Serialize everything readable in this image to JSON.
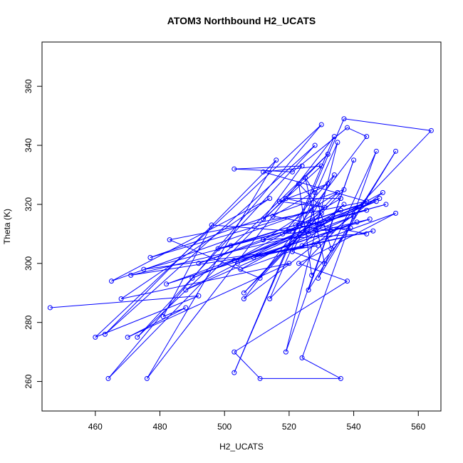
{
  "chart_data": {
    "type": "scatter",
    "title": "ATOM3 Northbound H2_UCATS",
    "xlabel": "H2_UCATS",
    "ylabel": "Theta (K)",
    "xlim": [
      443.5,
      567
    ],
    "ylim": [
      250,
      375
    ],
    "xticks": [
      460,
      480,
      500,
      520,
      540,
      560
    ],
    "yticks": [
      260,
      280,
      300,
      320,
      340,
      360
    ],
    "grid": false,
    "connect_points": true,
    "color": "#0000ff",
    "points": [
      {
        "x": 446,
        "y": 285
      },
      {
        "x": 492,
        "y": 289
      },
      {
        "x": 460,
        "y": 275
      },
      {
        "x": 530,
        "y": 347
      },
      {
        "x": 464,
        "y": 261
      },
      {
        "x": 532,
        "y": 337
      },
      {
        "x": 473,
        "y": 275
      },
      {
        "x": 528,
        "y": 340
      },
      {
        "x": 463,
        "y": 276
      },
      {
        "x": 516,
        "y": 335
      },
      {
        "x": 476,
        "y": 261
      },
      {
        "x": 534,
        "y": 343
      },
      {
        "x": 503,
        "y": 263
      },
      {
        "x": 537,
        "y": 349
      },
      {
        "x": 564,
        "y": 345
      },
      {
        "x": 514,
        "y": 288
      },
      {
        "x": 535,
        "y": 341
      },
      {
        "x": 519,
        "y": 270
      },
      {
        "x": 540,
        "y": 335
      },
      {
        "x": 526,
        "y": 291
      },
      {
        "x": 553,
        "y": 338
      },
      {
        "x": 529,
        "y": 295
      },
      {
        "x": 547,
        "y": 338
      },
      {
        "x": 524,
        "y": 268
      },
      {
        "x": 536,
        "y": 261
      },
      {
        "x": 511,
        "y": 261
      },
      {
        "x": 503,
        "y": 270
      },
      {
        "x": 538,
        "y": 294
      },
      {
        "x": 523,
        "y": 300
      },
      {
        "x": 553,
        "y": 317
      },
      {
        "x": 505,
        "y": 298
      },
      {
        "x": 549,
        "y": 324
      },
      {
        "x": 506,
        "y": 288
      },
      {
        "x": 544,
        "y": 343
      },
      {
        "x": 538,
        "y": 346
      },
      {
        "x": 521,
        "y": 331
      },
      {
        "x": 503,
        "y": 332
      },
      {
        "x": 524,
        "y": 333
      },
      {
        "x": 512,
        "y": 315
      },
      {
        "x": 530,
        "y": 333
      },
      {
        "x": 512,
        "y": 331
      },
      {
        "x": 544,
        "y": 321
      },
      {
        "x": 483,
        "y": 308
      },
      {
        "x": 511,
        "y": 295
      },
      {
        "x": 537,
        "y": 325
      },
      {
        "x": 477,
        "y": 302
      },
      {
        "x": 527,
        "y": 318
      },
      {
        "x": 465,
        "y": 294
      },
      {
        "x": 514,
        "y": 322
      },
      {
        "x": 468,
        "y": 288
      },
      {
        "x": 520,
        "y": 300
      },
      {
        "x": 470,
        "y": 275
      },
      {
        "x": 488,
        "y": 285
      },
      {
        "x": 481,
        "y": 282
      },
      {
        "x": 496,
        "y": 313
      },
      {
        "x": 520,
        "y": 311
      },
      {
        "x": 550,
        "y": 320
      },
      {
        "x": 475,
        "y": 298
      },
      {
        "x": 529,
        "y": 306
      },
      {
        "x": 471,
        "y": 296
      },
      {
        "x": 545,
        "y": 315
      },
      {
        "x": 482,
        "y": 293
      },
      {
        "x": 540,
        "y": 316
      },
      {
        "x": 488,
        "y": 291
      },
      {
        "x": 536,
        "y": 318
      },
      {
        "x": 492,
        "y": 300
      },
      {
        "x": 547,
        "y": 321
      },
      {
        "x": 490,
        "y": 295
      },
      {
        "x": 543,
        "y": 320
      },
      {
        "x": 498,
        "y": 305
      },
      {
        "x": 544,
        "y": 318
      },
      {
        "x": 502,
        "y": 306
      },
      {
        "x": 548,
        "y": 322
      },
      {
        "x": 504,
        "y": 300
      },
      {
        "x": 541,
        "y": 314
      },
      {
        "x": 509,
        "y": 302
      },
      {
        "x": 546,
        "y": 311
      },
      {
        "x": 503,
        "y": 301
      },
      {
        "x": 530,
        "y": 317
      },
      {
        "x": 506,
        "y": 290
      },
      {
        "x": 535,
        "y": 324
      },
      {
        "x": 512,
        "y": 308
      },
      {
        "x": 544,
        "y": 310
      },
      {
        "x": 515,
        "y": 316
      },
      {
        "x": 532,
        "y": 327
      },
      {
        "x": 517,
        "y": 321
      },
      {
        "x": 531,
        "y": 319
      },
      {
        "x": 519,
        "y": 322
      },
      {
        "x": 536,
        "y": 322
      },
      {
        "x": 522,
        "y": 313
      },
      {
        "x": 533,
        "y": 311
      },
      {
        "x": 524,
        "y": 306
      },
      {
        "x": 537,
        "y": 320
      },
      {
        "x": 526,
        "y": 310
      },
      {
        "x": 528,
        "y": 324
      },
      {
        "x": 525,
        "y": 329
      },
      {
        "x": 531,
        "y": 300
      },
      {
        "x": 521,
        "y": 304
      },
      {
        "x": 534,
        "y": 330
      },
      {
        "x": 518,
        "y": 310
      },
      {
        "x": 539,
        "y": 312
      },
      {
        "x": 527,
        "y": 296
      },
      {
        "x": 523,
        "y": 327
      },
      {
        "x": 529,
        "y": 320
      },
      {
        "x": 533,
        "y": 305
      }
    ]
  }
}
